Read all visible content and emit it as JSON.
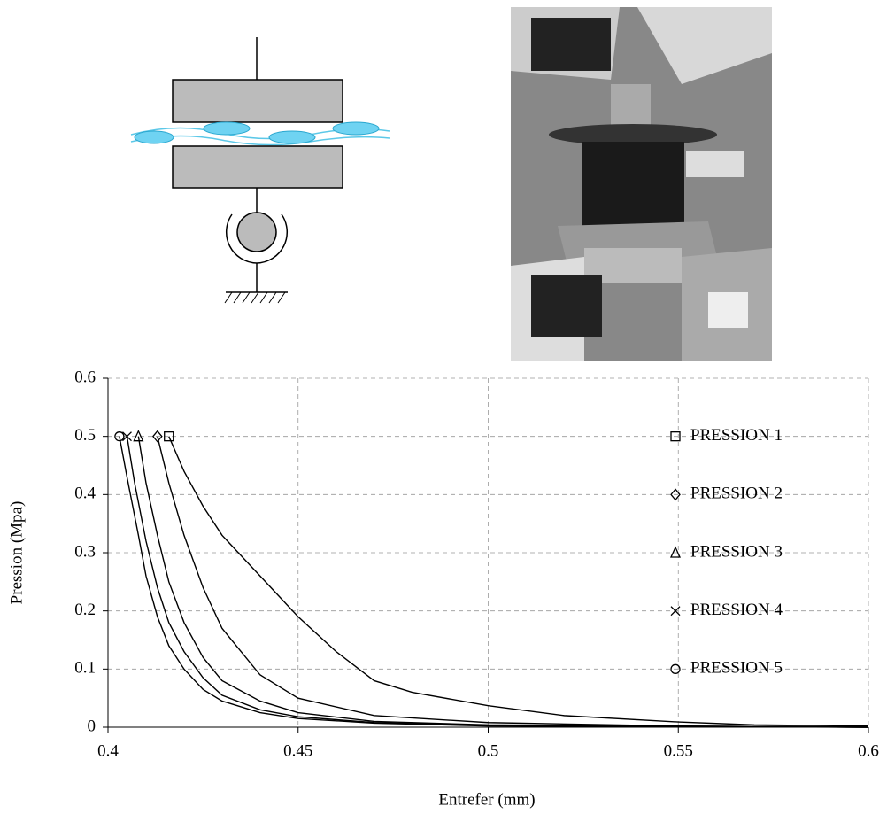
{
  "chart_data": {
    "type": "line",
    "xlabel": "Entrefer (mm)",
    "ylabel": "Pression (Mpa)",
    "xlim": [
      0.4,
      0.6
    ],
    "ylim": [
      0,
      0.6
    ],
    "xticks": [
      0.4,
      0.45,
      0.5,
      0.55,
      0.6
    ],
    "yticks": [
      0,
      0.1,
      0.2,
      0.3,
      0.4,
      0.5,
      0.6
    ],
    "grid": true,
    "legend": "right",
    "series": [
      {
        "name": "PRESSION 1",
        "color": "#000000",
        "marker": "square",
        "x": [
          0.416,
          0.42,
          0.425,
          0.43,
          0.44,
          0.45,
          0.46,
          0.47,
          0.48,
          0.5,
          0.52,
          0.55,
          0.57,
          0.6
        ],
        "values": [
          0.5,
          0.44,
          0.38,
          0.33,
          0.26,
          0.19,
          0.13,
          0.08,
          0.06,
          0.037,
          0.02,
          0.009,
          0.004,
          0.002
        ]
      },
      {
        "name": "PRESSION 2",
        "color": "#000000",
        "marker": "diamond",
        "x": [
          0.413,
          0.416,
          0.42,
          0.425,
          0.43,
          0.44,
          0.45,
          0.47,
          0.5,
          0.55,
          0.6
        ],
        "values": [
          0.5,
          0.42,
          0.33,
          0.24,
          0.17,
          0.09,
          0.05,
          0.02,
          0.008,
          0.002,
          0
        ]
      },
      {
        "name": "PRESSION 3",
        "color": "#000000",
        "marker": "triangle",
        "x": [
          0.408,
          0.41,
          0.413,
          0.416,
          0.42,
          0.425,
          0.43,
          0.44,
          0.45,
          0.47,
          0.5,
          0.6
        ],
        "values": [
          0.5,
          0.42,
          0.33,
          0.25,
          0.18,
          0.12,
          0.08,
          0.045,
          0.025,
          0.01,
          0.004,
          0
        ]
      },
      {
        "name": "PRESSION 4",
        "color": "#000000",
        "marker": "x",
        "x": [
          0.405,
          0.407,
          0.41,
          0.413,
          0.416,
          0.42,
          0.425,
          0.43,
          0.44,
          0.45,
          0.47,
          0.5,
          0.6
        ],
        "values": [
          0.5,
          0.42,
          0.32,
          0.24,
          0.18,
          0.13,
          0.085,
          0.055,
          0.03,
          0.018,
          0.008,
          0.003,
          0
        ]
      },
      {
        "name": "PRESSION 5",
        "color": "#000000",
        "marker": "circle",
        "x": [
          0.403,
          0.405,
          0.408,
          0.41,
          0.413,
          0.416,
          0.42,
          0.425,
          0.43,
          0.44,
          0.45,
          0.47,
          0.5,
          0.6
        ],
        "values": [
          0.5,
          0.43,
          0.33,
          0.26,
          0.19,
          0.14,
          0.1,
          0.065,
          0.045,
          0.025,
          0.015,
          0.007,
          0.002,
          0
        ]
      }
    ]
  }
}
